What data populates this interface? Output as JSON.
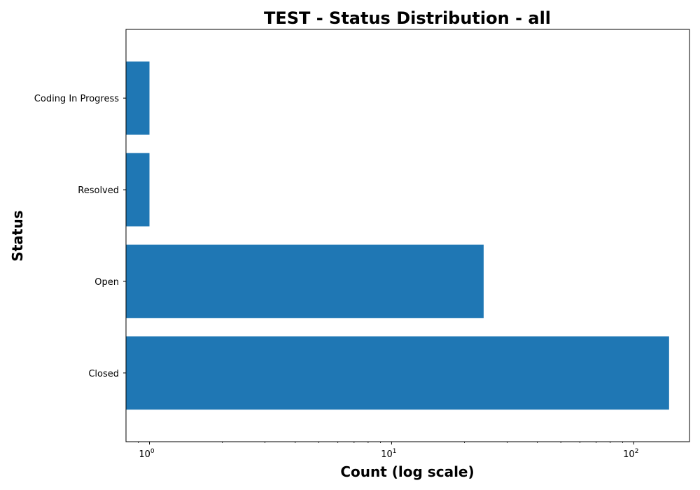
{
  "chart_data": {
    "type": "bar",
    "orientation": "horizontal",
    "title": "TEST - Status Distribution - all",
    "xlabel": "Count (log scale)",
    "ylabel": "Status",
    "x_scale": "log",
    "xlim": [
      0.8,
      170
    ],
    "x_ticks": [
      {
        "value": 1,
        "base": "10",
        "exp": "0"
      },
      {
        "value": 10,
        "base": "10",
        "exp": "1"
      },
      {
        "value": 100,
        "base": "10",
        "exp": "2"
      }
    ],
    "categories": [
      "Closed",
      "Open",
      "Resolved",
      "Coding In Progress"
    ],
    "values": [
      140,
      24,
      1,
      1
    ],
    "bar_color": "#1f77b4",
    "grid": false,
    "legend": false
  }
}
